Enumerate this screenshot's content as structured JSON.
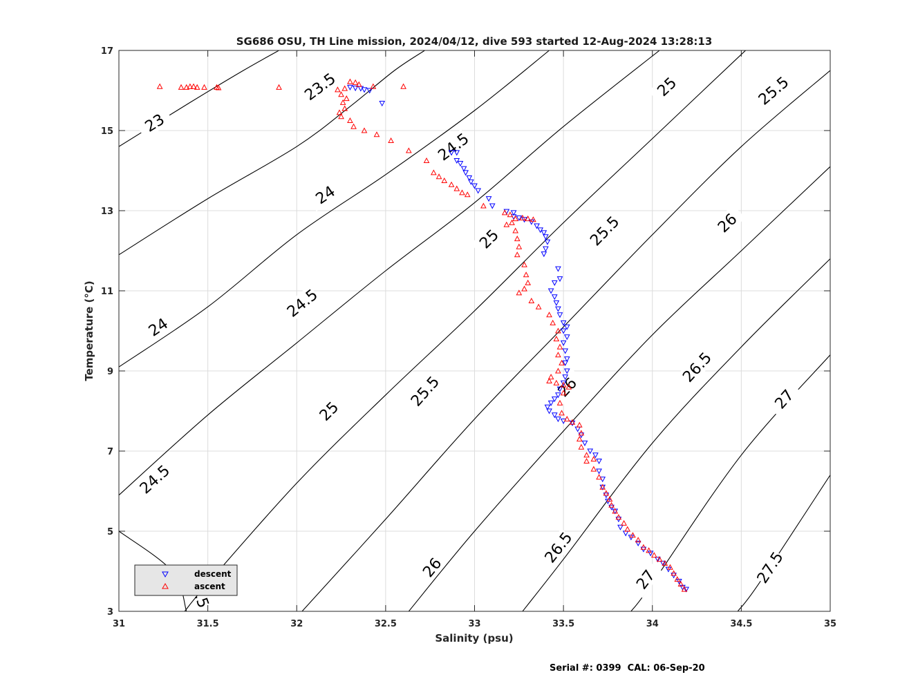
{
  "footer": "Serial #: 0399  CAL: 06-Sep-20",
  "chart_data": {
    "type": "scatter",
    "title": "SG686 OSU, TH Line mission, 2024/04/12, dive 593 started 12-Aug-2024 13:28:13",
    "xlabel": "Salinity (psu)",
    "ylabel": "Temperature (°C)",
    "xlim": [
      31,
      35
    ],
    "ylim": [
      3,
      17
    ],
    "x_ticks": [
      "31",
      "31.5",
      "32",
      "32.5",
      "33",
      "33.5",
      "34",
      "34.5",
      "35"
    ],
    "y_ticks": [
      "3",
      "5",
      "7",
      "9",
      "11",
      "13",
      "15",
      "17"
    ],
    "grid": true,
    "legend": {
      "position": "bottom-left",
      "entries": [
        {
          "name": "descent",
          "color": "#0000ff",
          "marker": "triangle-down"
        },
        {
          "name": "ascent",
          "color": "#ff0000",
          "marker": "triangle-up"
        }
      ]
    },
    "isopycnals": [
      {
        "sigma": 22.5,
        "points": [
          [
            31.0,
            5.0
          ],
          [
            31.3,
            4.0
          ],
          [
            31.38,
            3.0
          ]
        ],
        "labels": [
          {
            "text": "22.5",
            "s": 31.45,
            "t": 3.5
          }
        ]
      },
      {
        "sigma": 23.0,
        "points": [
          [
            31.0,
            14.6
          ],
          [
            31.4,
            15.7
          ],
          [
            31.7,
            16.5
          ],
          [
            31.9,
            17.0
          ]
        ],
        "labels": [
          {
            "text": "23",
            "s": 31.2,
            "t": 15.2
          }
        ]
      },
      {
        "sigma": 23.5,
        "points": [
          [
            31.0,
            11.9
          ],
          [
            31.5,
            13.3
          ],
          [
            32.0,
            14.6
          ],
          [
            32.3,
            15.6
          ],
          [
            32.55,
            16.5
          ],
          [
            32.72,
            17.0
          ]
        ],
        "labels": [
          {
            "text": "23.5",
            "s": 32.13,
            "t": 16.1
          }
        ]
      },
      {
        "sigma": 24.0,
        "points": [
          [
            31.0,
            9.1
          ],
          [
            31.5,
            10.6
          ],
          [
            32.0,
            12.4
          ],
          [
            32.5,
            13.9
          ],
          [
            33.0,
            15.5
          ],
          [
            33.42,
            17.0
          ]
        ],
        "labels": [
          {
            "text": "24",
            "s": 31.22,
            "t": 10.1
          },
          {
            "text": "24",
            "s": 32.16,
            "t": 13.4
          }
        ]
      },
      {
        "sigma": 24.5,
        "points": [
          [
            31.0,
            5.9
          ],
          [
            31.5,
            7.9
          ],
          [
            32.0,
            9.7
          ],
          [
            32.5,
            11.5
          ],
          [
            33.0,
            13.2
          ],
          [
            33.5,
            15.1
          ],
          [
            34.04,
            17.0
          ]
        ],
        "labels": [
          {
            "text": "24.5",
            "s": 31.2,
            "t": 6.3
          },
          {
            "text": "24.5",
            "s": 32.03,
            "t": 10.7
          },
          {
            "text": "24.5",
            "s": 32.88,
            "t": 14.6
          }
        ]
      },
      {
        "sigma": 25.0,
        "points": [
          [
            31.37,
            3.0
          ],
          [
            31.5,
            3.7
          ],
          [
            32.0,
            6.2
          ],
          [
            32.5,
            8.4
          ],
          [
            33.0,
            10.5
          ],
          [
            33.5,
            12.7
          ],
          [
            34.0,
            14.8
          ],
          [
            34.5,
            16.9
          ],
          [
            34.6,
            17.3
          ]
        ],
        "labels": [
          {
            "text": "25",
            "s": 32.18,
            "t": 8.0
          },
          {
            "text": "25",
            "s": 33.08,
            "t": 12.3
          },
          {
            "text": "25",
            "s": 34.08,
            "t": 16.1
          }
        ]
      },
      {
        "sigma": 25.5,
        "points": [
          [
            32.03,
            3.0
          ],
          [
            32.5,
            5.3
          ],
          [
            33.0,
            7.8
          ],
          [
            33.5,
            10.1
          ],
          [
            34.0,
            12.4
          ],
          [
            34.5,
            14.6
          ],
          [
            35.0,
            16.5
          ]
        ],
        "labels": [
          {
            "text": "25.5",
            "s": 32.72,
            "t": 8.5
          },
          {
            "text": "25.5",
            "s": 33.73,
            "t": 12.5
          },
          {
            "text": "25.5",
            "s": 34.68,
            "t": 16.0
          }
        ]
      },
      {
        "sigma": 26.0,
        "points": [
          [
            32.63,
            3.0
          ],
          [
            33.0,
            5.0
          ],
          [
            33.5,
            7.5
          ],
          [
            34.0,
            9.9
          ],
          [
            34.5,
            12.0
          ],
          [
            35.0,
            14.1
          ]
        ],
        "labels": [
          {
            "text": "26",
            "s": 32.76,
            "t": 4.1
          },
          {
            "text": "26",
            "s": 33.52,
            "t": 8.6
          },
          {
            "text": "26",
            "s": 34.42,
            "t": 12.7
          }
        ]
      },
      {
        "sigma": 26.5,
        "points": [
          [
            33.27,
            3.0
          ],
          [
            33.5,
            4.3
          ],
          [
            34.0,
            7.2
          ],
          [
            34.5,
            9.6
          ],
          [
            35.0,
            11.8
          ]
        ],
        "labels": [
          {
            "text": "26.5",
            "s": 33.47,
            "t": 4.6
          },
          {
            "text": "26.5",
            "s": 34.25,
            "t": 9.1
          }
        ]
      },
      {
        "sigma": 27.0,
        "points": [
          [
            33.88,
            3.0
          ],
          [
            34.0,
            3.7
          ],
          [
            34.5,
            6.9
          ],
          [
            35.0,
            9.4
          ]
        ],
        "labels": [
          {
            "text": "27",
            "s": 33.96,
            "t": 3.8
          },
          {
            "text": "27",
            "s": 34.74,
            "t": 8.3
          }
        ]
      },
      {
        "sigma": 27.5,
        "points": [
          [
            34.48,
            3.0
          ],
          [
            34.6,
            3.7
          ],
          [
            35.0,
            6.4
          ]
        ],
        "labels": [
          {
            "text": "27.5",
            "s": 34.66,
            "t": 4.1
          }
        ]
      }
    ],
    "series": [
      {
        "name": "descent",
        "color": "#0000ff",
        "marker": "triangle-down",
        "points": [
          [
            32.3,
            16.08
          ],
          [
            32.33,
            16.06
          ],
          [
            32.36,
            16.05
          ],
          [
            32.38,
            16.02
          ],
          [
            32.41,
            16.0
          ],
          [
            32.48,
            15.68
          ],
          [
            32.87,
            14.45
          ],
          [
            32.9,
            14.45
          ],
          [
            32.9,
            14.25
          ],
          [
            32.92,
            14.18
          ],
          [
            32.94,
            14.05
          ],
          [
            32.95,
            13.95
          ],
          [
            32.97,
            13.82
          ],
          [
            32.98,
            13.72
          ],
          [
            33.0,
            13.62
          ],
          [
            33.02,
            13.5
          ],
          [
            33.08,
            13.3
          ],
          [
            33.1,
            13.12
          ],
          [
            33.18,
            12.98
          ],
          [
            33.22,
            12.95
          ],
          [
            33.22,
            12.85
          ],
          [
            33.25,
            12.82
          ],
          [
            33.28,
            12.78
          ],
          [
            33.32,
            12.72
          ],
          [
            33.35,
            12.62
          ],
          [
            33.37,
            12.52
          ],
          [
            33.39,
            12.45
          ],
          [
            33.4,
            12.35
          ],
          [
            33.41,
            12.22
          ],
          [
            33.4,
            12.05
          ],
          [
            33.39,
            11.92
          ],
          [
            33.47,
            11.55
          ],
          [
            33.48,
            11.3
          ],
          [
            33.45,
            11.2
          ],
          [
            33.43,
            11.0
          ],
          [
            33.45,
            10.85
          ],
          [
            33.46,
            10.7
          ],
          [
            33.47,
            10.55
          ],
          [
            33.48,
            10.4
          ],
          [
            33.5,
            10.2
          ],
          [
            33.52,
            10.1
          ],
          [
            33.5,
            10.0
          ],
          [
            33.52,
            9.85
          ],
          [
            33.5,
            9.7
          ],
          [
            33.51,
            9.5
          ],
          [
            33.52,
            9.3
          ],
          [
            33.51,
            9.2
          ],
          [
            33.52,
            9.0
          ],
          [
            33.51,
            8.85
          ],
          [
            33.5,
            8.7
          ],
          [
            33.48,
            8.55
          ],
          [
            33.47,
            8.4
          ],
          [
            33.45,
            8.3
          ],
          [
            33.43,
            8.2
          ],
          [
            33.41,
            8.1
          ],
          [
            33.42,
            8.0
          ],
          [
            33.45,
            7.9
          ],
          [
            33.47,
            7.8
          ],
          [
            33.5,
            7.75
          ],
          [
            33.55,
            7.7
          ],
          [
            33.58,
            7.55
          ],
          [
            33.6,
            7.4
          ],
          [
            33.62,
            7.2
          ],
          [
            33.65,
            7.0
          ],
          [
            33.68,
            6.9
          ],
          [
            33.7,
            6.75
          ],
          [
            33.7,
            6.5
          ],
          [
            33.72,
            6.3
          ],
          [
            33.72,
            6.1
          ],
          [
            33.74,
            5.9
          ],
          [
            33.75,
            5.75
          ],
          [
            33.77,
            5.6
          ],
          [
            33.79,
            5.5
          ],
          [
            33.81,
            5.3
          ],
          [
            33.82,
            5.1
          ],
          [
            33.85,
            4.95
          ],
          [
            33.88,
            4.85
          ],
          [
            33.92,
            4.7
          ],
          [
            33.95,
            4.55
          ],
          [
            33.99,
            4.45
          ],
          [
            34.03,
            4.3
          ],
          [
            34.06,
            4.2
          ],
          [
            34.09,
            4.05
          ],
          [
            34.12,
            3.9
          ],
          [
            34.15,
            3.75
          ],
          [
            34.17,
            3.6
          ],
          [
            34.19,
            3.55
          ]
        ]
      },
      {
        "name": "ascent",
        "color": "#ff0000",
        "marker": "triangle-up",
        "points": [
          [
            31.23,
            16.1
          ],
          [
            31.35,
            16.08
          ],
          [
            31.38,
            16.08
          ],
          [
            31.4,
            16.1
          ],
          [
            31.42,
            16.1
          ],
          [
            31.44,
            16.08
          ],
          [
            31.48,
            16.08
          ],
          [
            31.55,
            16.08
          ],
          [
            31.56,
            16.07
          ],
          [
            31.9,
            16.08
          ],
          [
            32.43,
            16.1
          ],
          [
            32.6,
            16.1
          ],
          [
            32.3,
            16.22
          ],
          [
            32.33,
            16.2
          ],
          [
            32.35,
            16.15
          ],
          [
            32.27,
            16.05
          ],
          [
            32.23,
            16.02
          ],
          [
            32.25,
            15.9
          ],
          [
            32.28,
            15.8
          ],
          [
            32.26,
            15.7
          ],
          [
            32.27,
            15.55
          ],
          [
            32.24,
            15.45
          ],
          [
            32.25,
            15.35
          ],
          [
            32.3,
            15.25
          ],
          [
            32.32,
            15.1
          ],
          [
            32.38,
            15.0
          ],
          [
            32.45,
            14.9
          ],
          [
            32.53,
            14.75
          ],
          [
            32.63,
            14.5
          ],
          [
            32.73,
            14.25
          ],
          [
            32.77,
            13.95
          ],
          [
            32.8,
            13.85
          ],
          [
            32.83,
            13.75
          ],
          [
            32.87,
            13.65
          ],
          [
            32.9,
            13.55
          ],
          [
            32.93,
            13.45
          ],
          [
            32.96,
            13.4
          ],
          [
            33.05,
            13.12
          ],
          [
            33.17,
            12.95
          ],
          [
            33.2,
            12.9
          ],
          [
            33.23,
            12.8
          ],
          [
            33.27,
            12.82
          ],
          [
            33.3,
            12.8
          ],
          [
            33.33,
            12.78
          ],
          [
            33.18,
            12.65
          ],
          [
            33.21,
            12.7
          ],
          [
            33.23,
            12.5
          ],
          [
            33.24,
            12.3
          ],
          [
            33.25,
            12.1
          ],
          [
            33.24,
            11.9
          ],
          [
            33.28,
            11.65
          ],
          [
            33.29,
            11.4
          ],
          [
            33.3,
            11.2
          ],
          [
            33.28,
            11.05
          ],
          [
            33.25,
            10.95
          ],
          [
            33.32,
            10.75
          ],
          [
            33.36,
            10.6
          ],
          [
            33.42,
            10.4
          ],
          [
            33.44,
            10.2
          ],
          [
            33.47,
            10.0
          ],
          [
            33.46,
            9.8
          ],
          [
            33.48,
            9.6
          ],
          [
            33.47,
            9.4
          ],
          [
            33.49,
            9.2
          ],
          [
            33.47,
            9.0
          ],
          [
            33.43,
            8.85
          ],
          [
            33.42,
            8.75
          ],
          [
            33.46,
            8.7
          ],
          [
            33.5,
            8.65
          ],
          [
            33.53,
            8.6
          ],
          [
            33.5,
            8.45
          ],
          [
            33.48,
            8.2
          ],
          [
            33.49,
            7.95
          ],
          [
            33.52,
            7.8
          ],
          [
            33.55,
            7.72
          ],
          [
            33.59,
            7.65
          ],
          [
            33.6,
            7.45
          ],
          [
            33.59,
            7.3
          ],
          [
            33.6,
            7.1
          ],
          [
            33.63,
            6.9
          ],
          [
            33.67,
            6.8
          ],
          [
            33.63,
            6.75
          ],
          [
            33.67,
            6.55
          ],
          [
            33.7,
            6.35
          ],
          [
            33.72,
            6.1
          ],
          [
            33.74,
            5.95
          ],
          [
            33.76,
            5.8
          ],
          [
            33.77,
            5.65
          ],
          [
            33.79,
            5.5
          ],
          [
            33.81,
            5.35
          ],
          [
            33.84,
            5.2
          ],
          [
            33.86,
            5.05
          ],
          [
            33.89,
            4.9
          ],
          [
            33.92,
            4.78
          ],
          [
            33.95,
            4.6
          ],
          [
            33.98,
            4.52
          ],
          [
            34.01,
            4.4
          ],
          [
            34.04,
            4.3
          ],
          [
            34.07,
            4.2
          ],
          [
            34.1,
            4.1
          ],
          [
            34.12,
            3.95
          ],
          [
            34.14,
            3.8
          ],
          [
            34.16,
            3.68
          ],
          [
            34.18,
            3.55
          ]
        ]
      }
    ]
  }
}
